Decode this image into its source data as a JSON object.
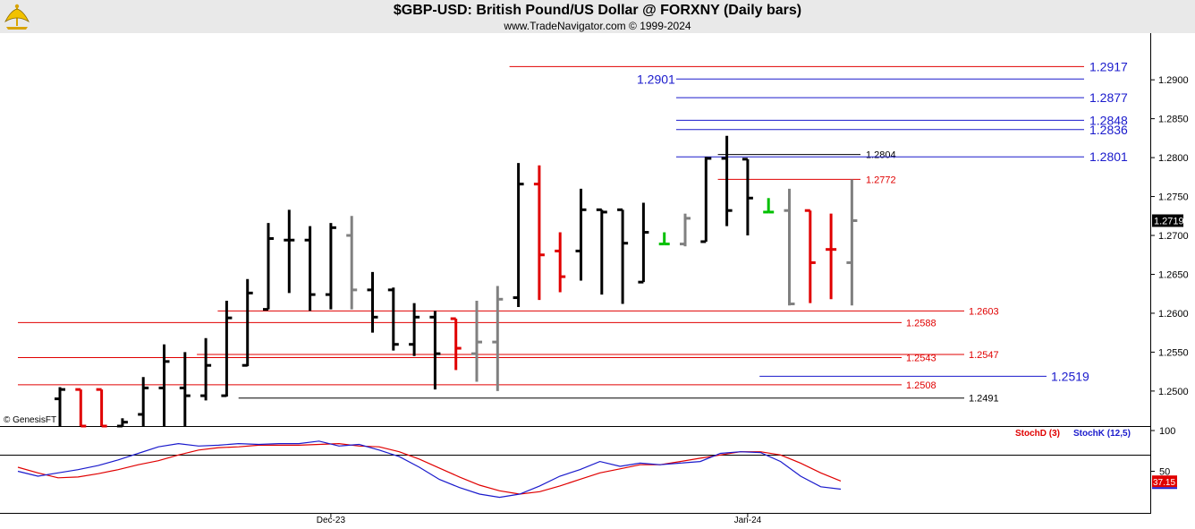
{
  "header": {
    "title": "$GBP-USD:  British Pound/US Dollar @ FORXNY  (Daily bars)",
    "subtitle": "www.TradeNavigator.com © 1999-2024"
  },
  "copyright": "© GenesisFT",
  "colors": {
    "up": "#000000",
    "down": "#e00000",
    "neutral": "#808080",
    "green": "#00c000",
    "blue_level": "#1a1acc",
    "red_level": "#e00000",
    "black_level": "#000000"
  },
  "chart_data": [
    {
      "type": "ohlc",
      "title": "$GBP-USD:  British Pound/US Dollar @ FORXNY  (Daily bars)",
      "ylim": [
        1.2455,
        1.296
      ],
      "y_ticks": [
        "1.2500",
        "1.2550",
        "1.2600",
        "1.2650",
        "1.2700",
        "1.2750",
        "1.2800",
        "1.2850",
        "1.2900"
      ],
      "x_ticks": [
        {
          "label": "Dec-23",
          "index": 13
        },
        {
          "label": "Jan-24",
          "index": 33
        }
      ],
      "last_price": "1.2719",
      "bars": [
        {
          "o": 1.249,
          "h": 1.2505,
          "l": 1.2455,
          "c": 1.2502,
          "col": "black"
        },
        {
          "o": 1.2502,
          "h": 1.2502,
          "l": 1.2455,
          "c": 1.2455,
          "col": "red"
        },
        {
          "o": 1.2502,
          "h": 1.2502,
          "l": 1.2455,
          "c": 1.2455,
          "col": "red"
        },
        {
          "o": 1.2455,
          "h": 1.2465,
          "l": 1.2455,
          "c": 1.246,
          "col": "black"
        },
        {
          "o": 1.247,
          "h": 1.2518,
          "l": 1.2455,
          "c": 1.2504,
          "col": "black"
        },
        {
          "o": 1.2504,
          "h": 1.256,
          "l": 1.2455,
          "c": 1.2538,
          "col": "black"
        },
        {
          "o": 1.2504,
          "h": 1.255,
          "l": 1.2455,
          "c": 1.2494,
          "col": "black"
        },
        {
          "o": 1.2494,
          "h": 1.2568,
          "l": 1.2488,
          "c": 1.2533,
          "col": "black"
        },
        {
          "o": 1.2494,
          "h": 1.2616,
          "l": 1.2493,
          "c": 1.2594,
          "col": "black"
        },
        {
          "o": 1.2533,
          "h": 1.2644,
          "l": 1.2532,
          "c": 1.2626,
          "col": "black"
        },
        {
          "o": 1.2605,
          "h": 1.2716,
          "l": 1.2605,
          "c": 1.2696,
          "col": "black"
        },
        {
          "o": 1.2694,
          "h": 1.2733,
          "l": 1.2626,
          "c": 1.2694,
          "col": "black"
        },
        {
          "o": 1.2694,
          "h": 1.2712,
          "l": 1.2603,
          "c": 1.2624,
          "col": "black"
        },
        {
          "o": 1.2624,
          "h": 1.2716,
          "l": 1.2605,
          "c": 1.271,
          "col": "black"
        },
        {
          "o": 1.27,
          "h": 1.2725,
          "l": 1.2605,
          "c": 1.263,
          "col": "gray"
        },
        {
          "o": 1.263,
          "h": 1.2653,
          "l": 1.2575,
          "c": 1.2595,
          "col": "black"
        },
        {
          "o": 1.263,
          "h": 1.2633,
          "l": 1.2552,
          "c": 1.256,
          "col": "black"
        },
        {
          "o": 1.256,
          "h": 1.2613,
          "l": 1.2545,
          "c": 1.2595,
          "col": "black"
        },
        {
          "o": 1.2595,
          "h": 1.2603,
          "l": 1.2502,
          "c": 1.2548,
          "col": "black"
        },
        {
          "o": 1.2593,
          "h": 1.2593,
          "l": 1.2527,
          "c": 1.2555,
          "col": "red"
        },
        {
          "o": 1.2548,
          "h": 1.2616,
          "l": 1.2512,
          "c": 1.2563,
          "col": "gray"
        },
        {
          "o": 1.2563,
          "h": 1.2635,
          "l": 1.25,
          "c": 1.2618,
          "col": "gray"
        },
        {
          "o": 1.262,
          "h": 1.2793,
          "l": 1.2608,
          "c": 1.2766,
          "col": "black"
        },
        {
          "o": 1.2766,
          "h": 1.279,
          "l": 1.2617,
          "c": 1.2675,
          "col": "red"
        },
        {
          "o": 1.268,
          "h": 1.2704,
          "l": 1.2627,
          "c": 1.2647,
          "col": "red"
        },
        {
          "o": 1.268,
          "h": 1.276,
          "l": 1.2642,
          "c": 1.2733,
          "col": "black"
        },
        {
          "o": 1.2733,
          "h": 1.2733,
          "l": 1.2624,
          "c": 1.273,
          "col": "black"
        },
        {
          "o": 1.2733,
          "h": 1.2733,
          "l": 1.2612,
          "c": 1.269,
          "col": "black"
        },
        {
          "o": 1.264,
          "h": 1.2742,
          "l": 1.264,
          "c": 1.2704,
          "col": "black"
        },
        {
          "o": 1.2689,
          "h": 1.2704,
          "l": 1.2689,
          "c": 1.2689,
          "col": "green"
        },
        {
          "o": 1.2689,
          "h": 1.2728,
          "l": 1.2686,
          "c": 1.2722,
          "col": "gray"
        },
        {
          "o": 1.2692,
          "h": 1.2801,
          "l": 1.2692,
          "c": 1.2799,
          "col": "black"
        },
        {
          "o": 1.2799,
          "h": 1.2828,
          "l": 1.2712,
          "c": 1.2732,
          "col": "black"
        },
        {
          "o": 1.2798,
          "h": 1.2798,
          "l": 1.27,
          "c": 1.2748,
          "col": "black"
        },
        {
          "o": 1.273,
          "h": 1.2748,
          "l": 1.273,
          "c": 1.273,
          "col": "green"
        },
        {
          "o": 1.2732,
          "h": 1.276,
          "l": 1.261,
          "c": 1.2612,
          "col": "gray"
        },
        {
          "o": 1.2732,
          "h": 1.2732,
          "l": 1.2613,
          "c": 1.2665,
          "col": "red"
        },
        {
          "o": 1.2682,
          "h": 1.2728,
          "l": 1.2618,
          "c": 1.2682,
          "col": "red"
        },
        {
          "o": 1.2665,
          "h": 1.2772,
          "l": 1.261,
          "c": 1.2719,
          "col": "gray"
        }
      ],
      "levels": [
        {
          "value": 1.2917,
          "label": "1.2917",
          "color": "blue",
          "line_from": 22,
          "label_side": "right",
          "line_color": "red"
        },
        {
          "value": 1.2901,
          "label": "1.2901",
          "color": "blue",
          "line_from": 30,
          "label_side": "left"
        },
        {
          "value": 1.2877,
          "label": "1.2877",
          "color": "blue",
          "line_from": 30,
          "label_side": "right"
        },
        {
          "value": 1.2848,
          "label": "1.2848",
          "color": "blue",
          "line_from": 30,
          "label_side": "right"
        },
        {
          "value": 1.2836,
          "label": "1.2836",
          "color": "blue",
          "line_from": 30,
          "label_side": "right"
        },
        {
          "value": 1.2804,
          "label": "1.2804",
          "color": "black",
          "line_from": 32,
          "label_side": "mid"
        },
        {
          "value": 1.2801,
          "label": "1.2801",
          "color": "blue",
          "line_from": 30,
          "label_side": "right"
        },
        {
          "value": 1.2772,
          "label": "1.2772",
          "color": "red",
          "line_from": 32,
          "label_side": "mid"
        },
        {
          "value": 1.2603,
          "label": "1.2603",
          "color": "red",
          "line_from": 8,
          "label_side": "far"
        },
        {
          "value": 1.2588,
          "label": "1.2588",
          "color": "red",
          "line_from": 0,
          "label_side": "mid2"
        },
        {
          "value": 1.2547,
          "label": "1.2547",
          "color": "red",
          "line_from": 7,
          "label_side": "far"
        },
        {
          "value": 1.2543,
          "label": "1.2543",
          "color": "red",
          "line_from": 0,
          "label_side": "mid2"
        },
        {
          "value": 1.2519,
          "label": "1.2519",
          "color": "blue",
          "line_from": 34,
          "label_side": "far2"
        },
        {
          "value": 1.2508,
          "label": "1.2508",
          "color": "red",
          "line_from": 0,
          "label_side": "mid2"
        },
        {
          "value": 1.2491,
          "label": "1.2491",
          "color": "black",
          "line_from": 9,
          "label_side": "far"
        }
      ]
    },
    {
      "type": "line",
      "title": "Stochastic",
      "ylim": [
        0,
        100
      ],
      "y_ticks": [
        "100",
        "50"
      ],
      "last_value": "37.15",
      "series": [
        {
          "name": "StochD (3)",
          "color": "#e00000",
          "values": [
            55,
            48,
            42,
            43,
            47,
            52,
            58,
            63,
            70,
            76,
            79,
            80,
            82,
            82,
            82,
            83,
            84,
            81,
            80,
            74,
            65,
            54,
            43,
            33,
            26,
            22,
            25,
            32,
            40,
            48,
            53,
            58,
            58,
            62,
            66,
            70,
            74,
            74,
            70,
            60,
            48,
            38
          ]
        },
        {
          "name": "StochK (12,5)",
          "color": "#1a1acc",
          "values": [
            50,
            44,
            48,
            52,
            57,
            64,
            72,
            80,
            84,
            81,
            82,
            84,
            83,
            84,
            84,
            87,
            81,
            83,
            76,
            68,
            55,
            40,
            30,
            22,
            18,
            22,
            32,
            44,
            52,
            62,
            56,
            60,
            58,
            60,
            62,
            72,
            74,
            73,
            62,
            44,
            31,
            28
          ]
        }
      ]
    }
  ]
}
